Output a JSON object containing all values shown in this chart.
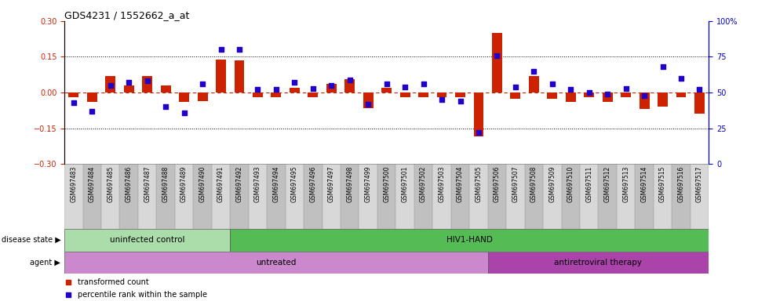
{
  "title": "GDS4231 / 1552662_a_at",
  "samples": [
    "GSM697483",
    "GSM697484",
    "GSM697485",
    "GSM697486",
    "GSM697487",
    "GSM697488",
    "GSM697489",
    "GSM697490",
    "GSM697491",
    "GSM697492",
    "GSM697493",
    "GSM697494",
    "GSM697495",
    "GSM697496",
    "GSM697497",
    "GSM697498",
    "GSM697499",
    "GSM697500",
    "GSM697501",
    "GSM697502",
    "GSM697503",
    "GSM697504",
    "GSM697505",
    "GSM697506",
    "GSM697507",
    "GSM697508",
    "GSM697509",
    "GSM697510",
    "GSM697511",
    "GSM697512",
    "GSM697513",
    "GSM697514",
    "GSM697515",
    "GSM697516",
    "GSM697517"
  ],
  "bar_values": [
    -0.02,
    -0.04,
    0.07,
    0.03,
    0.07,
    0.03,
    -0.04,
    -0.035,
    0.14,
    0.135,
    -0.02,
    -0.02,
    0.02,
    -0.02,
    0.035,
    0.055,
    -0.065,
    0.02,
    -0.02,
    -0.02,
    -0.02,
    -0.02,
    -0.185,
    0.25,
    -0.025,
    0.07,
    -0.025,
    -0.04,
    -0.02,
    -0.04,
    -0.02,
    -0.07,
    -0.06,
    -0.02,
    -0.09
  ],
  "dot_values": [
    43,
    37,
    55,
    57,
    58,
    40,
    36,
    56,
    80,
    80,
    52,
    52,
    57,
    53,
    55,
    59,
    42,
    56,
    54,
    56,
    45,
    44,
    22,
    76,
    54,
    65,
    56,
    52,
    50,
    49,
    53,
    48,
    68,
    60,
    52
  ],
  "ylim_left": [
    -0.3,
    0.3
  ],
  "ylim_right": [
    0,
    100
  ],
  "yticks_left": [
    -0.3,
    -0.15,
    0,
    0.15,
    0.3
  ],
  "yticks_right": [
    0,
    25,
    50,
    75,
    100
  ],
  "hlines": [
    -0.15,
    0.15
  ],
  "disease_state_groups": [
    {
      "label": "uninfected control",
      "start": 0,
      "end": 9,
      "color": "#aaddaa"
    },
    {
      "label": "HIV1-HAND",
      "start": 9,
      "end": 35,
      "color": "#55bb55"
    }
  ],
  "agent_groups": [
    {
      "label": "untreated",
      "start": 0,
      "end": 23,
      "color": "#cc88cc"
    },
    {
      "label": "antiretroviral therapy",
      "start": 23,
      "end": 35,
      "color": "#aa44aa"
    }
  ],
  "bar_color": "#cc2200",
  "dot_color": "#2200cc",
  "zero_line_color": "#cc2200",
  "hline_color": "#000000",
  "left_axis_color": "#cc2200",
  "right_axis_color": "#0000cc",
  "bar_width": 0.55,
  "tick_col_light": "#d8d8d8",
  "tick_col_dark": "#c0c0c0"
}
